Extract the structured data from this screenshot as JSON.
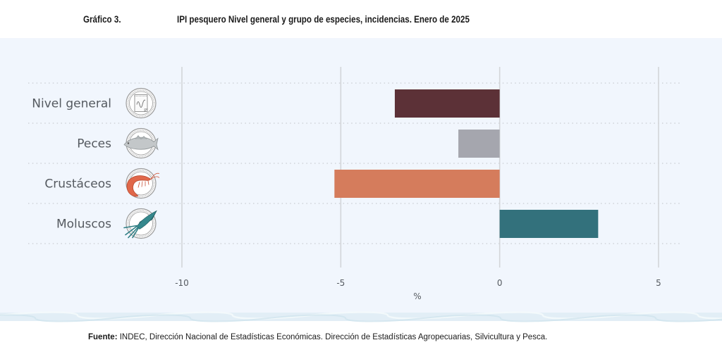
{
  "header": {
    "figure_label": "Gráfico 3.",
    "title": "IPI pesquero Nivel general y grupo de especies, incidencias. Enero de 2025"
  },
  "chart_data": {
    "type": "bar",
    "orientation": "horizontal",
    "title": "IPI pesquero Nivel general y grupo de especies, incidencias. Enero de 2025",
    "categories": [
      "Nivel general",
      "Peces",
      "Crustáceos",
      "Moluscos"
    ],
    "category_icons": [
      "document-chart-icon",
      "fish-icon",
      "shrimp-icon",
      "squid-icon"
    ],
    "values": [
      -3.3,
      -1.3,
      -5.2,
      3.1
    ],
    "colors": [
      "#5c3137",
      "#a5a6ae",
      "#d57c5c",
      "#33717c"
    ],
    "xlabel": "%",
    "ylabel": "",
    "xlim": [
      -10,
      5
    ],
    "xticks": [
      -10,
      -5,
      0,
      5
    ],
    "xtick_labels": [
      "-10",
      "-5",
      "0",
      "5"
    ],
    "grid": true,
    "legend": "none"
  },
  "footer": {
    "source_label": "Fuente:",
    "source_text": " INDEC, Dirección Nacional de Estadísticas Económicas. Dirección de Estadísticas Agropecuarias, Silvicultura y Pesca."
  }
}
